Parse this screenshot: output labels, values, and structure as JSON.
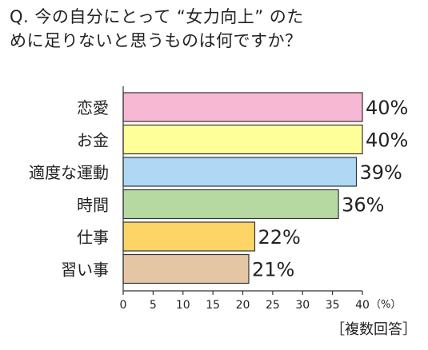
{
  "question": {
    "line1": "Q. 今の自分にとって “女力向上” のた",
    "line2": "めに足りないと思うものは何ですか？"
  },
  "note": "［複数回答］",
  "chart_data": {
    "type": "bar",
    "orientation": "horizontal",
    "categories": [
      "恋愛",
      "お金",
      "適度な運動",
      "時間",
      "仕事",
      "習い事"
    ],
    "values": [
      40,
      40,
      39,
      36,
      22,
      21
    ],
    "value_labels": [
      "40%",
      "40%",
      "39%",
      "36%",
      "22%",
      "21%"
    ],
    "colors": [
      "#f7b8d4",
      "#ffff99",
      "#aed8f4",
      "#b6d9a2",
      "#fdd466",
      "#e5c6a4"
    ],
    "xlim": [
      0,
      40
    ],
    "ticks": [
      0,
      5,
      10,
      15,
      20,
      25,
      30,
      35,
      40
    ],
    "tick_labels": [
      "0",
      "5",
      "10",
      "15",
      "20",
      "25",
      "30",
      "35",
      "40"
    ],
    "unit_label": "（%）",
    "grid": false
  }
}
